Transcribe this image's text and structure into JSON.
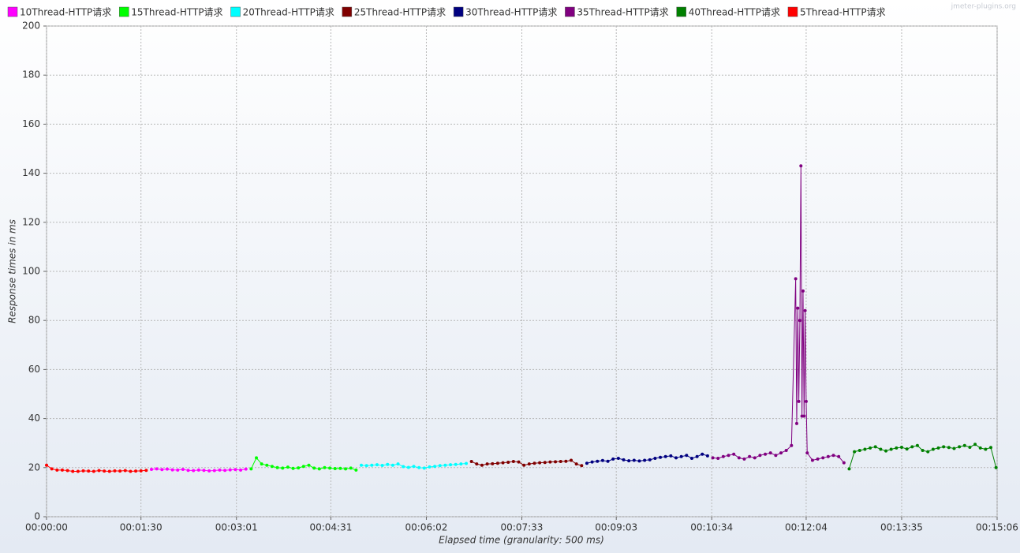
{
  "chart_data": {
    "type": "line",
    "watermark": "jmeter-plugins.org",
    "x_label": "Elapsed time (granularity: 500 ms)",
    "y_label": "Response times in ms",
    "xlim": [
      0,
      906
    ],
    "ylim": [
      0,
      200
    ],
    "xticks": [
      {
        "value": 0,
        "label": "00:00:00"
      },
      {
        "value": 90,
        "label": "00:01:30"
      },
      {
        "value": 181,
        "label": "00:03:01"
      },
      {
        "value": 271,
        "label": "00:04:31"
      },
      {
        "value": 362,
        "label": "00:06:02"
      },
      {
        "value": 453,
        "label": "00:07:33"
      },
      {
        "value": 543,
        "label": "00:09:03"
      },
      {
        "value": 634,
        "label": "00:10:34"
      },
      {
        "value": 724,
        "label": "00:12:04"
      },
      {
        "value": 815,
        "label": "00:13:35"
      },
      {
        "value": 906,
        "label": "00:15:06"
      }
    ],
    "yticks": [
      0,
      20,
      40,
      60,
      80,
      100,
      120,
      140,
      160,
      180,
      200
    ],
    "grid": true,
    "series": [
      {
        "name": "10Thread-HTTP请求",
        "color": "#ff00ff",
        "x": [
          100,
          105,
          110,
          115,
          120,
          125,
          130,
          135,
          140,
          145,
          150,
          155,
          160,
          165,
          170,
          175,
          180,
          185,
          190
        ],
        "values": [
          19.3,
          19.5,
          19.2,
          19.4,
          19.1,
          19,
          19.3,
          18.9,
          18.8,
          19,
          18.9,
          18.7,
          18.8,
          19,
          18.9,
          19.1,
          19.2,
          19,
          19.4
        ]
      },
      {
        "name": "15Thread-HTTP请求",
        "color": "#00ff00",
        "x": [
          195,
          200,
          205,
          210,
          215,
          220,
          225,
          230,
          235,
          240,
          245,
          250,
          255,
          260,
          265,
          270,
          275,
          280,
          285,
          290,
          295
        ],
        "values": [
          19.5,
          24,
          21.5,
          21,
          20.5,
          20,
          19.8,
          20.2,
          19.7,
          19.9,
          20.5,
          21,
          19.8,
          19.5,
          20,
          19.8,
          19.6,
          19.7,
          19.5,
          19.8,
          19
        ]
      },
      {
        "name": "20Thread-HTTP请求",
        "color": "#00ffff",
        "x": [
          300,
          305,
          310,
          315,
          320,
          325,
          330,
          335,
          340,
          345,
          350,
          355,
          360,
          365,
          370,
          375,
          380,
          385,
          390,
          395,
          400
        ],
        "values": [
          21,
          20.8,
          21,
          21.2,
          20.9,
          21.3,
          21,
          21.5,
          20.4,
          20.1,
          20.5,
          20,
          19.8,
          20.3,
          20.5,
          20.8,
          21,
          21.2,
          21.3,
          21.5,
          21.7
        ]
      },
      {
        "name": "25Thread-HTTP请求",
        "color": "#800000",
        "x": [
          405,
          410,
          415,
          420,
          425,
          430,
          435,
          440,
          445,
          450,
          455,
          460,
          465,
          470,
          475,
          480,
          485,
          490,
          495,
          500,
          505,
          510
        ],
        "values": [
          22.5,
          21.5,
          21,
          21.5,
          21.6,
          21.8,
          22,
          22.2,
          22.5,
          22.3,
          21,
          21.5,
          21.8,
          22,
          22.1,
          22.3,
          22.4,
          22.5,
          22.6,
          23,
          21.5,
          20.8
        ]
      },
      {
        "name": "30Thread-HTTP请求",
        "color": "#000080",
        "x": [
          515,
          520,
          525,
          530,
          535,
          540,
          545,
          550,
          555,
          560,
          565,
          570,
          575,
          580,
          585,
          590,
          595,
          600,
          605,
          610,
          615,
          620,
          625,
          630
        ],
        "values": [
          21.8,
          22.3,
          22.6,
          22.9,
          22.6,
          23.5,
          23.8,
          23.2,
          22.8,
          23,
          22.7,
          23,
          23.2,
          23.8,
          24.2,
          24.5,
          24.8,
          24,
          24.5,
          25,
          23.8,
          24.5,
          25.5,
          24.8
        ]
      },
      {
        "name": "35Thread-HTTP请求",
        "color": "#800080",
        "x": [
          635,
          640,
          645,
          650,
          655,
          660,
          665,
          670,
          675,
          680,
          685,
          690,
          695,
          700,
          705,
          710,
          714,
          715,
          716,
          717,
          718,
          719,
          720,
          721,
          722,
          723,
          724,
          725,
          730,
          735,
          740,
          745,
          750,
          755,
          760
        ],
        "values": [
          24,
          23.8,
          24.5,
          25,
          25.5,
          24,
          23.5,
          24.5,
          24,
          25,
          25.5,
          26,
          25,
          26,
          27,
          29,
          97,
          38,
          85,
          47,
          80,
          143,
          41,
          92,
          41,
          84,
          47,
          26,
          23,
          23.5,
          24,
          24.5,
          25,
          24.5,
          22
        ]
      },
      {
        "name": "40Thread-HTTP请求",
        "color": "#008000",
        "x": [
          765,
          770,
          775,
          780,
          785,
          790,
          795,
          800,
          805,
          810,
          815,
          820,
          825,
          830,
          835,
          840,
          845,
          850,
          855,
          860,
          865,
          870,
          875,
          880,
          885,
          890,
          895,
          900,
          905
        ],
        "values": [
          19.5,
          26.5,
          27,
          27.5,
          28,
          28.5,
          27.5,
          26.8,
          27.5,
          28,
          28.3,
          27.6,
          28.5,
          29,
          27,
          26.5,
          27.5,
          28,
          28.5,
          28.2,
          27.8,
          28.5,
          29,
          28.3,
          29.5,
          28,
          27.5,
          28.2,
          20
        ]
      },
      {
        "name": "5Thread-HTTP请求",
        "color": "#ff0000",
        "x": [
          0,
          5,
          10,
          15,
          20,
          25,
          30,
          35,
          40,
          45,
          50,
          55,
          60,
          65,
          70,
          75,
          80,
          85,
          90,
          95
        ],
        "values": [
          21,
          19.5,
          19,
          19,
          18.8,
          18.5,
          18.5,
          18.7,
          18.6,
          18.5,
          18.8,
          18.6,
          18.5,
          18.7,
          18.6,
          18.8,
          18.5,
          18.6,
          18.7,
          18.9
        ]
      }
    ]
  }
}
